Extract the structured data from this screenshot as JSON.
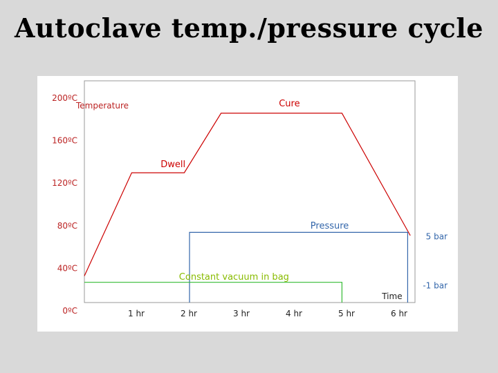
{
  "slide": {
    "title": "Autoclave temp./pressure cycle"
  },
  "chart_data": {
    "type": "line",
    "xlabel": "Time",
    "ylabel": "Temperature",
    "x_unit": "hr",
    "xlim": [
      0,
      6.5
    ],
    "ylim": [
      0,
      200
    ],
    "x_ticks": [
      {
        "value": 1,
        "label": "1 hr"
      },
      {
        "value": 2,
        "label": "2 hr"
      },
      {
        "value": 3,
        "label": "3 hr"
      },
      {
        "value": 4,
        "label": "4 hr"
      },
      {
        "value": 5,
        "label": "5 hr"
      },
      {
        "value": 6,
        "label": "6 hr"
      }
    ],
    "y_ticks": [
      {
        "value": 200,
        "label": "200ºC"
      },
      {
        "value": 160,
        "label": "160ºC"
      },
      {
        "value": 120,
        "label": "120ºC"
      },
      {
        "value": 80,
        "label": "80ºC"
      },
      {
        "value": 40,
        "label": "40ºC"
      },
      {
        "value": 0,
        "label": "0ºC"
      }
    ],
    "series": [
      {
        "key": "temperature",
        "color": "#cc0000",
        "points": [
          [
            0,
            25
          ],
          [
            0.9,
            122
          ],
          [
            1.9,
            122
          ],
          [
            2.6,
            178
          ],
          [
            4.9,
            178
          ],
          [
            6.2,
            63
          ]
        ]
      },
      {
        "key": "pressure",
        "color": "#3366aa",
        "points": [
          [
            2,
            0
          ],
          [
            2,
            66
          ],
          [
            6.15,
            66
          ],
          [
            6.15,
            0
          ]
        ]
      },
      {
        "key": "vacuum",
        "color": "#33bb33",
        "points": [
          [
            0,
            19
          ],
          [
            4.9,
            19
          ],
          [
            4.9,
            0
          ]
        ]
      }
    ],
    "annotations": [
      {
        "text": "Cure",
        "x": 3.7,
        "y": 187,
        "color": "#cc0000"
      },
      {
        "text": "Dwell",
        "x": 1.45,
        "y": 130,
        "color": "#cc0000"
      },
      {
        "text": "Pressure",
        "x": 4.3,
        "y": 72,
        "color": "#3366aa"
      },
      {
        "text": "Constant vacuum in bag",
        "x": 1.8,
        "y": 24,
        "color": "#88bb00"
      }
    ],
    "side_labels": [
      {
        "text": "5 bar",
        "y": 62,
        "color": "#3366aa"
      },
      {
        "text": "-1 bar",
        "y": 16,
        "color": "#3366aa"
      }
    ]
  }
}
